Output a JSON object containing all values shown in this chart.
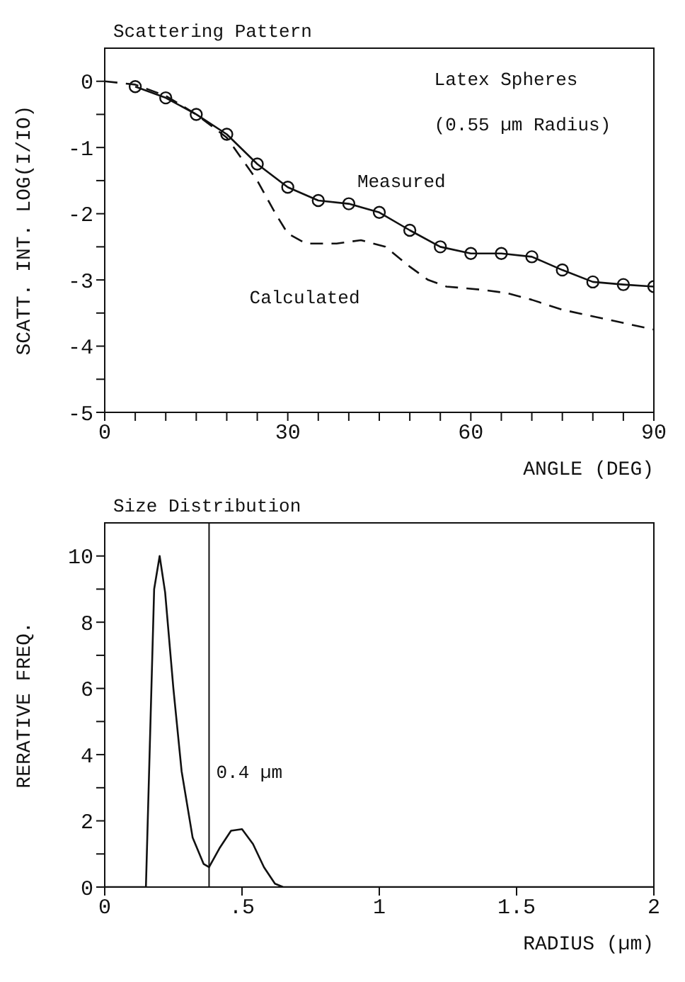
{
  "chart_data": [
    {
      "type": "line",
      "title": "Scattering Pattern",
      "xlabel": "ANGLE (DEG)",
      "ylabel": "SCATT. INT. LOG(I/IO)",
      "annotations": [
        "Latex Spheres",
        "(0.55 µm Radius)"
      ],
      "xlim": [
        0,
        90
      ],
      "xticks": [
        0,
        {
          "value": 5,
          "label": null
        },
        {
          "value": 10,
          "label": null
        },
        {
          "value": 15,
          "label": null
        },
        {
          "value": 20,
          "label": null
        },
        {
          "value": 25,
          "label": null
        },
        30,
        {
          "value": 35,
          "label": null
        },
        {
          "value": 40,
          "label": null
        },
        {
          "value": 45,
          "label": null
        },
        {
          "value": 50,
          "label": null
        },
        {
          "value": 55,
          "label": null
        },
        60,
        {
          "value": 65,
          "label": null
        },
        {
          "value": 70,
          "label": null
        },
        {
          "value": 75,
          "label": null
        },
        {
          "value": 80,
          "label": null
        },
        {
          "value": 85,
          "label": null
        },
        90
      ],
      "ylim": [
        -5,
        0.5
      ],
      "yticks": [
        -5,
        {
          "value": -4.5,
          "label": null
        },
        -4,
        {
          "value": -3.5,
          "label": null
        },
        -3,
        {
          "value": -2.5,
          "label": null
        },
        -2,
        {
          "value": -1.5,
          "label": null
        },
        -1,
        {
          "value": -0.5,
          "label": null
        },
        0
      ],
      "series": [
        {
          "name": "Measured",
          "color": "#111111",
          "marker": "circle",
          "line_style": "solid",
          "x": [
            5,
            10,
            15,
            20,
            25,
            30,
            35,
            40,
            45,
            50,
            55,
            60,
            65,
            70,
            75,
            80,
            85,
            90
          ],
          "values": [
            -0.08,
            -0.25,
            -0.5,
            -0.8,
            -1.25,
            -1.6,
            -1.8,
            -1.85,
            -1.98,
            -2.25,
            -2.5,
            -2.6,
            -2.6,
            -2.65,
            -2.85,
            -3.03,
            -3.07,
            -3.1
          ]
        },
        {
          "name": "Calculated",
          "color": "#111111",
          "marker": "none",
          "line_style": "dashed",
          "x": [
            0,
            5,
            10,
            15,
            20,
            25,
            28,
            30,
            33,
            38,
            42,
            46,
            50,
            53,
            56,
            62,
            66,
            70,
            75,
            80,
            85,
            90
          ],
          "values": [
            0,
            -0.05,
            -0.22,
            -0.5,
            -0.85,
            -1.5,
            -2.0,
            -2.3,
            -2.45,
            -2.45,
            -2.4,
            -2.5,
            -2.8,
            -3.0,
            -3.1,
            -3.15,
            -3.2,
            -3.3,
            -3.45,
            -3.55,
            -3.65,
            -3.75
          ]
        }
      ]
    },
    {
      "type": "line",
      "title": "Size Distribution",
      "xlabel": "RADIUS  (µm)",
      "ylabel": "RERATIVE FREQ.",
      "xlim": [
        0,
        2
      ],
      "xticks": [
        0,
        {
          "value": 0.5,
          "label": ".5"
        },
        1,
        1.5,
        2
      ],
      "ylim": [
        0,
        11
      ],
      "yticks": [
        0,
        {
          "value": 1,
          "label": null
        },
        2,
        {
          "value": 3,
          "label": null
        },
        4,
        {
          "value": 5,
          "label": null
        },
        6,
        {
          "value": 7,
          "label": null
        },
        8,
        {
          "value": 9,
          "label": null
        },
        10
      ],
      "ref_lines": [
        {
          "axis": "x",
          "value": 0.38,
          "label": "0.4 µm",
          "color": "#111111",
          "line_style": "solid"
        }
      ],
      "series": [
        {
          "color": "#111111",
          "marker": "none",
          "line_style": "solid",
          "x": [
            0,
            0.15,
            0.18,
            0.2,
            0.22,
            0.25,
            0.28,
            0.32,
            0.36,
            0.38,
            0.42,
            0.46,
            0.5,
            0.54,
            0.58,
            0.62,
            0.65,
            2
          ],
          "values": [
            0,
            0,
            9,
            10,
            8.9,
            6,
            3.5,
            1.5,
            0.7,
            0.6,
            1.2,
            1.7,
            1.75,
            1.3,
            0.6,
            0.1,
            0,
            0
          ]
        }
      ]
    }
  ]
}
